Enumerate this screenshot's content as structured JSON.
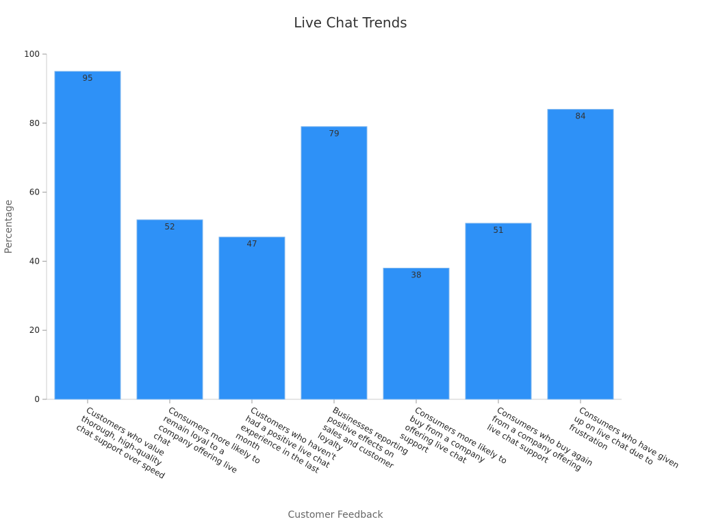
{
  "chart_data": {
    "type": "bar",
    "title": "Live Chat Trends",
    "x_label": "Customer Feedback",
    "y_label": "Percentage",
    "categories": [
      "Customers who value thorough, high-quality chat support over speed",
      "Consumers more likely to remain loyal to a company offering live chat",
      "Customers who haven't had a positive live chat experience in the last month",
      "Businesses reporting positive effects on sales and customer loyalty",
      "Consumers more likely to buy from a company offering live chat support",
      "Consumers who buy again from a company offering live chat support",
      "Consumers who have given up on live chat due to frustration"
    ],
    "values": [
      95,
      52,
      47,
      79,
      38,
      51,
      84
    ],
    "color": "#2e91f7",
    "ylim": [
      0,
      100
    ],
    "yticks": [
      0,
      20,
      40,
      60,
      80,
      100
    ],
    "grid": false
  }
}
